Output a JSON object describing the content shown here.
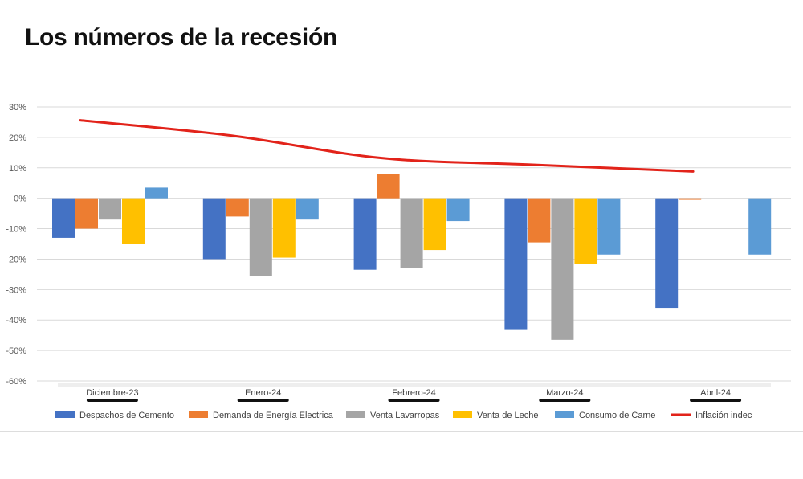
{
  "headline": "Los números de la recesión",
  "chart_data": {
    "type": "bar",
    "title": "",
    "xlabel": "",
    "ylabel": "",
    "ylim": [
      -0.6,
      0.3
    ],
    "yticks": [
      0.3,
      0.2,
      0.1,
      0,
      -0.1,
      -0.2,
      -0.3,
      -0.4,
      -0.5,
      -0.6
    ],
    "ytick_labels": [
      "30%",
      "20%",
      "10%",
      "0%",
      "-10%",
      "-20%",
      "-30%",
      "-40%",
      "-50%",
      "-60%"
    ],
    "grid": true,
    "legend_position": "bottom",
    "categories": [
      "Diciembre-23",
      "Enero-24",
      "Febrero-24",
      "Marzo-24",
      "Abril-24"
    ],
    "series": [
      {
        "name": "Despachos de Cemento",
        "kind": "bar",
        "color": "#4472c4",
        "values": [
          -0.13,
          -0.2,
          -0.235,
          -0.43,
          -0.36
        ]
      },
      {
        "name": "Demanda de Energía Electrica",
        "kind": "bar",
        "color": "#ed7d31",
        "values": [
          -0.1,
          -0.06,
          0.08,
          -0.145,
          -0.005
        ]
      },
      {
        "name": "Venta Lavarropas",
        "kind": "bar",
        "color": "#a5a5a5",
        "values": [
          -0.07,
          -0.255,
          -0.23,
          -0.465,
          null
        ]
      },
      {
        "name": "Venta de Leche",
        "kind": "bar",
        "color": "#ffc000",
        "values": [
          -0.15,
          -0.195,
          -0.17,
          -0.215,
          null
        ]
      },
      {
        "name": "Consumo de Carne",
        "kind": "bar",
        "color": "#5b9bd5",
        "values": [
          0.035,
          -0.07,
          -0.075,
          -0.185,
          -0.185
        ]
      },
      {
        "name": "Inflación indec",
        "kind": "line",
        "color": "#e2231a",
        "values": [
          0.256,
          0.206,
          0.132,
          0.11,
          0.088
        ]
      }
    ]
  }
}
